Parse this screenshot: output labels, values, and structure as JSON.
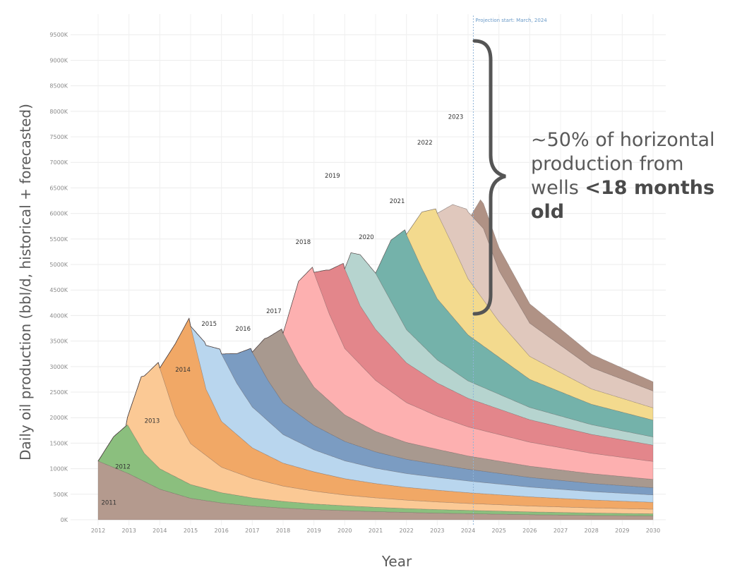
{
  "chart_data": {
    "type": "area",
    "stacked": true,
    "xlabel": "Year",
    "ylabel": "Daily oil production (bbl/d, historical + forecasted)",
    "xlim": [
      2012,
      2030
    ],
    "ylim": [
      0,
      9600
    ],
    "x_ticks": [
      "2012",
      "2013",
      "2014",
      "2015",
      "2016",
      "2017",
      "2018",
      "2019",
      "2020",
      "2021",
      "2022",
      "2023",
      "2024",
      "2025",
      "2026",
      "2027",
      "2028",
      "2029",
      "2030"
    ],
    "y_ticks": [
      "0K",
      "500K",
      "1000K",
      "1500K",
      "2000K",
      "2500K",
      "3000K",
      "3500K",
      "4000K",
      "4500K",
      "5000K",
      "5500K",
      "6000K",
      "6500K",
      "7000K",
      "7500K",
      "8000K",
      "8500K",
      "9000K",
      "9500K"
    ],
    "grid": true,
    "projection": {
      "x": 2024.17,
      "label": "Projection start: March, 2024"
    },
    "series": [
      {
        "name": "2011",
        "color": "#b49a8e",
        "label_pos": [
          2012.35,
          300
        ],
        "points": [
          [
            2012,
            1150
          ],
          [
            2013,
            900
          ],
          [
            2014,
            600
          ],
          [
            2015,
            420
          ],
          [
            2016,
            330
          ],
          [
            2017,
            270
          ],
          [
            2018,
            230
          ],
          [
            2019,
            200
          ],
          [
            2020,
            180
          ],
          [
            2021,
            160
          ],
          [
            2022,
            145
          ],
          [
            2023,
            130
          ],
          [
            2024,
            120
          ],
          [
            2026,
            100
          ],
          [
            2028,
            85
          ],
          [
            2030,
            75
          ]
        ]
      },
      {
        "name": "2012",
        "color": "#8bbf7e",
        "label_pos": [
          2012.8,
          1000
        ],
        "points": [
          [
            2012,
            0
          ],
          [
            2012.5,
            600
          ],
          [
            2012.95,
            950
          ],
          [
            2013.5,
            550
          ],
          [
            2014,
            400
          ],
          [
            2015,
            270
          ],
          [
            2016,
            200
          ],
          [
            2017,
            160
          ],
          [
            2018,
            130
          ],
          [
            2019,
            110
          ],
          [
            2020,
            95
          ],
          [
            2021,
            85
          ],
          [
            2022,
            75
          ],
          [
            2023,
            70
          ],
          [
            2024,
            65
          ],
          [
            2026,
            55
          ],
          [
            2028,
            48
          ],
          [
            2030,
            42
          ]
        ]
      },
      {
        "name": "2013",
        "color": "#fbc995",
        "label_pos": [
          2013.75,
          1900
        ],
        "points": [
          [
            2012.9,
            0
          ],
          [
            2013.4,
            1400
          ],
          [
            2013.95,
            2050
          ],
          [
            2014.5,
            1200
          ],
          [
            2015,
            800
          ],
          [
            2016,
            500
          ],
          [
            2017,
            380
          ],
          [
            2018,
            300
          ],
          [
            2019,
            250
          ],
          [
            2020,
            210
          ],
          [
            2021,
            185
          ],
          [
            2022,
            165
          ],
          [
            2024,
            135
          ],
          [
            2026,
            115
          ],
          [
            2028,
            100
          ],
          [
            2030,
            90
          ]
        ]
      },
      {
        "name": "2014",
        "color": "#f1a866",
        "label_pos": [
          2014.75,
          2900
        ],
        "points": [
          [
            2014,
            0
          ],
          [
            2014.5,
            1400
          ],
          [
            2014.95,
            2400
          ],
          [
            2015.5,
            1300
          ],
          [
            2016,
            900
          ],
          [
            2017,
            600
          ],
          [
            2018,
            450
          ],
          [
            2019,
            380
          ],
          [
            2020,
            320
          ],
          [
            2021,
            280
          ],
          [
            2022,
            250
          ],
          [
            2024,
            210
          ],
          [
            2026,
            180
          ],
          [
            2028,
            155
          ],
          [
            2030,
            135
          ]
        ]
      },
      {
        "name": "2015",
        "color": "#b9d6ee",
        "label_pos": [
          2015.6,
          3800
        ],
        "points": [
          [
            2015,
            0
          ],
          [
            2015.45,
            800
          ],
          [
            2015.95,
            1350
          ],
          [
            2016.5,
            1000
          ],
          [
            2017,
            800
          ],
          [
            2018,
            560
          ],
          [
            2019,
            430
          ],
          [
            2020,
            350
          ],
          [
            2021,
            300
          ],
          [
            2022,
            270
          ],
          [
            2024,
            230
          ],
          [
            2026,
            190
          ],
          [
            2028,
            165
          ],
          [
            2030,
            145
          ]
        ]
      },
      {
        "name": "2016",
        "color": "#7b9cc2",
        "label_pos": [
          2016.7,
          3700
        ],
        "points": [
          [
            2016,
            0
          ],
          [
            2016.6,
            700
          ],
          [
            2016.95,
            1100
          ],
          [
            2017.5,
            800
          ],
          [
            2018,
            620
          ],
          [
            2019,
            480
          ],
          [
            2020,
            380
          ],
          [
            2021,
            320
          ],
          [
            2022,
            280
          ],
          [
            2024,
            230
          ],
          [
            2026,
            190
          ],
          [
            2028,
            160
          ],
          [
            2030,
            140
          ]
        ]
      },
      {
        "name": "2017",
        "color": "#a8998f",
        "label_pos": [
          2017.7,
          4050
        ],
        "points": [
          [
            2017,
            0
          ],
          [
            2017.4,
            700
          ],
          [
            2017.95,
            1400
          ],
          [
            2018.5,
            1000
          ],
          [
            2019,
            750
          ],
          [
            2020,
            520
          ],
          [
            2021,
            400
          ],
          [
            2022,
            330
          ],
          [
            2024,
            260
          ],
          [
            2026,
            220
          ],
          [
            2028,
            190
          ],
          [
            2030,
            165
          ]
        ]
      },
      {
        "name": "2018",
        "color": "#fdb0b0",
        "label_pos": [
          2018.65,
          5400
        ],
        "points": [
          [
            2018,
            0
          ],
          [
            2018.5,
            1600
          ],
          [
            2018.95,
            2300
          ],
          [
            2019.5,
            1700
          ],
          [
            2020,
            1300
          ],
          [
            2021,
            1000
          ],
          [
            2022,
            780
          ],
          [
            2023,
            650
          ],
          [
            2024,
            570
          ],
          [
            2026,
            470
          ],
          [
            2028,
            400
          ],
          [
            2030,
            350
          ]
        ]
      },
      {
        "name": "2019",
        "color": "#e3868b",
        "label_pos": [
          2019.6,
          6700
        ],
        "points": [
          [
            2019,
            0
          ],
          [
            2019.4,
            700
          ],
          [
            2019.95,
            1600
          ],
          [
            2020.2,
            1400
          ],
          [
            2020.5,
            1150
          ],
          [
            2021,
            1000
          ],
          [
            2022,
            780
          ],
          [
            2023,
            650
          ],
          [
            2024,
            560
          ],
          [
            2026,
            440
          ],
          [
            2028,
            370
          ],
          [
            2030,
            320
          ]
        ]
      },
      {
        "name": "2020",
        "color": "#b6d4cf",
        "label_pos": [
          2020.7,
          5500
        ],
        "points": [
          [
            2020,
            0
          ],
          [
            2020.2,
            600
          ],
          [
            2020.5,
            1000
          ],
          [
            2021,
            1100
          ],
          [
            2022,
            650
          ],
          [
            2023,
            450
          ],
          [
            2024,
            340
          ],
          [
            2026,
            240
          ],
          [
            2028,
            190
          ],
          [
            2030,
            160
          ]
        ]
      },
      {
        "name": "2021",
        "color": "#74b2aa",
        "label_pos": [
          2021.7,
          6200
        ],
        "points": [
          [
            2021,
            0
          ],
          [
            2021.5,
            1200
          ],
          [
            2021.95,
            1900
          ],
          [
            2022.5,
            1500
          ],
          [
            2023,
            1200
          ],
          [
            2024,
            900
          ],
          [
            2026,
            550
          ],
          [
            2028,
            400
          ],
          [
            2030,
            330
          ]
        ]
      },
      {
        "name": "2022",
        "color": "#f3da8e",
        "label_pos": [
          2022.6,
          7350
        ],
        "points": [
          [
            2022,
            0
          ],
          [
            2022.5,
            1100
          ],
          [
            2022.95,
            1700
          ],
          [
            2023.5,
            1400
          ],
          [
            2024,
            1100
          ],
          [
            2025,
            700
          ],
          [
            2026,
            450
          ],
          [
            2028,
            300
          ],
          [
            2030,
            240
          ]
        ]
      },
      {
        "name": "2023",
        "color": "#e0c8bd",
        "label_pos": [
          2023.6,
          7850
        ],
        "points": [
          [
            2023,
            0
          ],
          [
            2023.5,
            800
          ],
          [
            2023.95,
            1300
          ],
          [
            2024.5,
            1400
          ],
          [
            2025,
            1000
          ],
          [
            2026,
            650
          ],
          [
            2028,
            420
          ],
          [
            2030,
            330
          ]
        ]
      },
      {
        "name": "",
        "color": "#b09285",
        "points": [
          [
            2024.1,
            0
          ],
          [
            2024.4,
            500
          ],
          [
            2025,
            450
          ],
          [
            2026,
            380
          ],
          [
            2028,
            260
          ],
          [
            2030,
            180
          ]
        ]
      }
    ]
  },
  "annotation": {
    "line1": "~50% of horizontal",
    "line2": "production from",
    "line3_prefix": "wells ",
    "line3_bold": "<18 months",
    "line4_bold": "old"
  }
}
